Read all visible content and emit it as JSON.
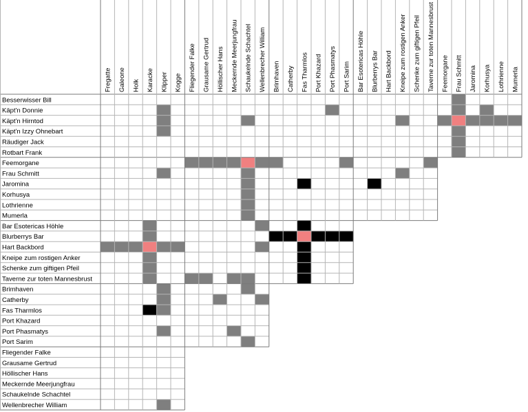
{
  "columns": [
    "Fregatte",
    "Galeone",
    "Holk",
    "Karacke",
    "Klipper",
    "Kogge",
    "Fliegender Falke",
    "Grausame Gertrud",
    "Höllischer Hans",
    "Meckernde Meerjungfrau",
    "Schaukelnde Schachtel",
    "Wellenbrecher William",
    "Brimhaven",
    "Catherby",
    "Fas Tharmlos",
    "Port Khazard",
    "Port Phasmatys",
    "Port Sarim",
    "Bar Esotericas Höhle",
    "Blurberrys Bar",
    "Hart Backbord",
    "Kneipe zum rostigen Anker",
    "Schenke zum giftigen Pfeil",
    "Taverne zur toten Mannesbrust",
    "Feemorgane",
    "Frau Schmitt",
    "Jaromina",
    "Korhusya",
    "Lothrienne",
    "Mumerla"
  ],
  "rows": [
    "Besserwisser Bill",
    "Käpt'n Donnie",
    "Käpt'n Hirntod",
    "Käpt'n Izzy Ohnebart",
    "Räudiger Jack",
    "Rotbart Frank",
    "Feemorgane",
    "Frau Schmitt",
    "Jaromina",
    "Korhusya",
    "Lothrienne",
    "Mumerla",
    "Bar Esotericas Höhle",
    "Blurberrys Bar",
    "Hart Backbord",
    "Kneipe zum rostigen Anker",
    "Schenke zum giftigen Pfeil",
    "Taverne zur toten Mannesbrust",
    "Brimhaven",
    "Catherby",
    "Fas Tharmlos",
    "Port Khazard",
    "Port Phasmatys",
    "Port Sarim",
    "Fliegender Falke",
    "Grausame Gertrud",
    "Höllischer Hans",
    "Meckernde Meerjungfrau",
    "Schaukelnde Schachtel",
    "Wellenbrecher William"
  ],
  "row_col_counts": [
    30,
    30,
    30,
    30,
    30,
    30,
    24,
    24,
    24,
    24,
    24,
    24,
    18,
    18,
    18,
    18,
    18,
    18,
    12,
    12,
    12,
    12,
    12,
    12,
    6,
    6,
    6,
    6,
    6,
    6
  ],
  "colors": {
    "grey": "#7f7f7f",
    "red": "#f08080",
    "black": "#000000",
    "line": "#b4b4b4",
    "group_line": "#7a7a7a"
  },
  "marked_cells": [
    {
      "r": 0,
      "c": 25,
      "s": "grey"
    },
    {
      "r": 1,
      "c": 4,
      "s": "grey"
    },
    {
      "r": 1,
      "c": 16,
      "s": "grey"
    },
    {
      "r": 1,
      "c": 25,
      "s": "grey"
    },
    {
      "r": 1,
      "c": 27,
      "s": "grey"
    },
    {
      "r": 2,
      "c": 4,
      "s": "grey"
    },
    {
      "r": 2,
      "c": 10,
      "s": "grey"
    },
    {
      "r": 2,
      "c": 21,
      "s": "grey"
    },
    {
      "r": 2,
      "c": 24,
      "s": "grey"
    },
    {
      "r": 2,
      "c": 25,
      "s": "red"
    },
    {
      "r": 2,
      "c": 26,
      "s": "grey"
    },
    {
      "r": 2,
      "c": 27,
      "s": "grey"
    },
    {
      "r": 2,
      "c": 28,
      "s": "grey"
    },
    {
      "r": 2,
      "c": 29,
      "s": "grey"
    },
    {
      "r": 3,
      "c": 4,
      "s": "grey"
    },
    {
      "r": 3,
      "c": 25,
      "s": "grey"
    },
    {
      "r": 4,
      "c": 25,
      "s": "grey"
    },
    {
      "r": 5,
      "c": 25,
      "s": "grey"
    },
    {
      "r": 6,
      "c": 6,
      "s": "grey"
    },
    {
      "r": 6,
      "c": 7,
      "s": "grey"
    },
    {
      "r": 6,
      "c": 8,
      "s": "grey"
    },
    {
      "r": 6,
      "c": 9,
      "s": "grey"
    },
    {
      "r": 6,
      "c": 10,
      "s": "red"
    },
    {
      "r": 6,
      "c": 11,
      "s": "grey"
    },
    {
      "r": 6,
      "c": 12,
      "s": "grey"
    },
    {
      "r": 6,
      "c": 17,
      "s": "grey"
    },
    {
      "r": 6,
      "c": 23,
      "s": "grey"
    },
    {
      "r": 7,
      "c": 4,
      "s": "grey"
    },
    {
      "r": 7,
      "c": 10,
      "s": "grey"
    },
    {
      "r": 7,
      "c": 21,
      "s": "grey"
    },
    {
      "r": 8,
      "c": 10,
      "s": "grey"
    },
    {
      "r": 8,
      "c": 14,
      "s": "black"
    },
    {
      "r": 8,
      "c": 19,
      "s": "black"
    },
    {
      "r": 9,
      "c": 10,
      "s": "grey"
    },
    {
      "r": 10,
      "c": 10,
      "s": "grey"
    },
    {
      "r": 11,
      "c": 10,
      "s": "grey"
    },
    {
      "r": 12,
      "c": 3,
      "s": "grey"
    },
    {
      "r": 12,
      "c": 11,
      "s": "grey"
    },
    {
      "r": 12,
      "c": 14,
      "s": "black"
    },
    {
      "r": 13,
      "c": 3,
      "s": "grey"
    },
    {
      "r": 13,
      "c": 12,
      "s": "black"
    },
    {
      "r": 13,
      "c": 13,
      "s": "black"
    },
    {
      "r": 13,
      "c": 14,
      "s": "red"
    },
    {
      "r": 13,
      "c": 15,
      "s": "black"
    },
    {
      "r": 13,
      "c": 16,
      "s": "black"
    },
    {
      "r": 13,
      "c": 17,
      "s": "black"
    },
    {
      "r": 14,
      "c": 0,
      "s": "grey"
    },
    {
      "r": 14,
      "c": 1,
      "s": "grey"
    },
    {
      "r": 14,
      "c": 2,
      "s": "grey"
    },
    {
      "r": 14,
      "c": 3,
      "s": "red"
    },
    {
      "r": 14,
      "c": 4,
      "s": "grey"
    },
    {
      "r": 14,
      "c": 5,
      "s": "grey"
    },
    {
      "r": 14,
      "c": 11,
      "s": "grey"
    },
    {
      "r": 14,
      "c": 14,
      "s": "black"
    },
    {
      "r": 15,
      "c": 3,
      "s": "grey"
    },
    {
      "r": 15,
      "c": 14,
      "s": "black"
    },
    {
      "r": 16,
      "c": 3,
      "s": "grey"
    },
    {
      "r": 16,
      "c": 14,
      "s": "black"
    },
    {
      "r": 17,
      "c": 3,
      "s": "grey"
    },
    {
      "r": 17,
      "c": 6,
      "s": "grey"
    },
    {
      "r": 17,
      "c": 7,
      "s": "grey"
    },
    {
      "r": 17,
      "c": 9,
      "s": "grey"
    },
    {
      "r": 17,
      "c": 10,
      "s": "grey"
    },
    {
      "r": 17,
      "c": 14,
      "s": "black"
    },
    {
      "r": 18,
      "c": 4,
      "s": "grey"
    },
    {
      "r": 18,
      "c": 10,
      "s": "grey"
    },
    {
      "r": 19,
      "c": 4,
      "s": "grey"
    },
    {
      "r": 19,
      "c": 8,
      "s": "grey"
    },
    {
      "r": 19,
      "c": 11,
      "s": "grey"
    },
    {
      "r": 20,
      "c": 3,
      "s": "black"
    },
    {
      "r": 20,
      "c": 4,
      "s": "grey"
    },
    {
      "r": 22,
      "c": 4,
      "s": "grey"
    },
    {
      "r": 22,
      "c": 9,
      "s": "grey"
    },
    {
      "r": 23,
      "c": 10,
      "s": "grey"
    },
    {
      "r": 29,
      "c": 4,
      "s": "grey"
    }
  ]
}
